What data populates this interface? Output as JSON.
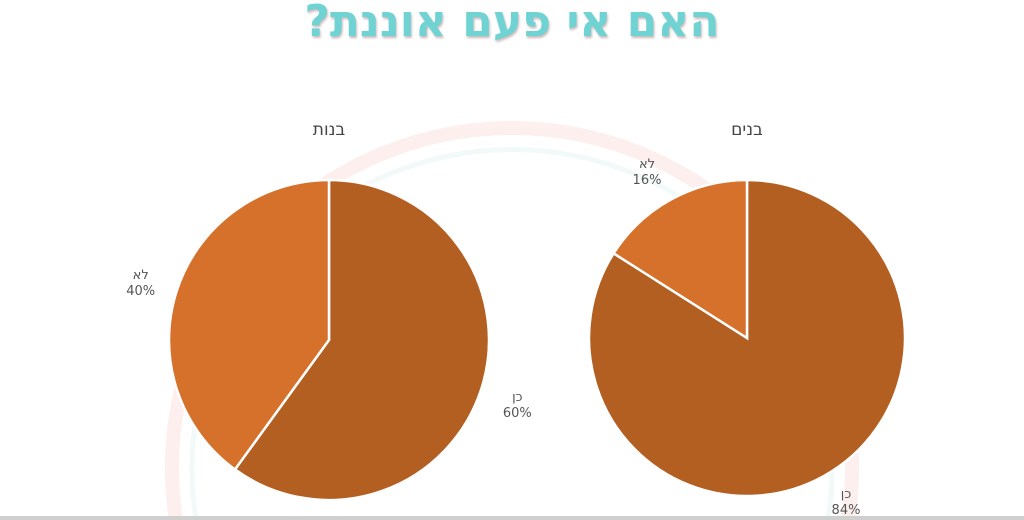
{
  "title": "האם אי פעם אוננת?",
  "chart_data": [
    {
      "type": "pie",
      "title": "בנות",
      "categories": [
        "כן",
        "לא"
      ],
      "values": [
        60,
        40
      ],
      "labels": [
        "60%",
        "40%"
      ],
      "colors": [
        "#b35f22",
        "#d6712c"
      ]
    },
    {
      "type": "pie",
      "title": "בנים",
      "categories": [
        "כן",
        "לא"
      ],
      "values": [
        84,
        16
      ],
      "labels": [
        "84%",
        "16%"
      ],
      "colors": [
        "#b35f22",
        "#d6712c"
      ]
    }
  ]
}
